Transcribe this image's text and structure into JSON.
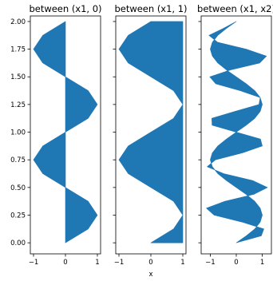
{
  "chart_data": [
    {
      "type": "area",
      "orientation": "horizontal-fill",
      "title": "between (x1, 0)",
      "xlabel": "",
      "ylabel": "",
      "xlim": [
        -1.1,
        1.1
      ],
      "ylim": [
        -0.1,
        2.05
      ],
      "xticks": [
        -1,
        0,
        1
      ],
      "xtick_labels": [
        "−1",
        "0",
        "1"
      ],
      "yticks": [
        0.0,
        0.25,
        0.5,
        0.75,
        1.0,
        1.25,
        1.5,
        1.75,
        2.0
      ],
      "ytick_labels": [
        "0.00",
        "0.25",
        "0.50",
        "0.75",
        "1.00",
        "1.25",
        "1.50",
        "1.75",
        "2.00"
      ],
      "color": "#1f77b4",
      "series": [
        {
          "y": [
            0,
            0.125,
            0.25,
            0.375,
            0.5,
            0.625,
            0.75,
            0.875,
            1.0,
            1.125,
            1.25,
            1.375,
            1.5,
            1.625,
            1.75,
            1.875,
            2.0
          ],
          "x1": [
            0,
            0.71,
            1,
            0.71,
            0,
            -0.71,
            -1,
            -0.71,
            0,
            0.71,
            1,
            0.71,
            0,
            -0.71,
            -1,
            -0.71,
            0
          ],
          "x2": [
            0,
            0,
            0,
            0,
            0,
            0,
            0,
            0,
            0,
            0,
            0,
            0,
            0,
            0,
            0,
            0,
            0
          ]
        }
      ]
    },
    {
      "type": "area",
      "orientation": "horizontal-fill",
      "title": "between (x1, 1)",
      "xlabel": "x",
      "ylabel": "",
      "xlim": [
        -1.1,
        1.1
      ],
      "ylim": [
        -0.1,
        2.05
      ],
      "xticks": [
        -1,
        0,
        1
      ],
      "xtick_labels": [
        "−1",
        "0",
        "1"
      ],
      "yticks": [
        0.0,
        0.25,
        0.5,
        0.75,
        1.0,
        1.25,
        1.5,
        1.75,
        2.0
      ],
      "ytick_labels": [],
      "color": "#1f77b4",
      "series": [
        {
          "y": [
            0,
            0.125,
            0.25,
            0.375,
            0.5,
            0.625,
            0.75,
            0.875,
            1.0,
            1.125,
            1.25,
            1.375,
            1.5,
            1.625,
            1.75,
            1.875,
            2.0
          ],
          "x1": [
            0,
            0.71,
            1,
            0.71,
            0,
            -0.71,
            -1,
            -0.71,
            0,
            0.71,
            1,
            0.71,
            0,
            -0.71,
            -1,
            -0.71,
            0
          ],
          "x2": [
            1,
            1,
            1,
            1,
            1,
            1,
            1,
            1,
            1,
            1,
            1,
            1,
            1,
            1,
            1,
            1,
            1
          ]
        }
      ]
    },
    {
      "type": "area",
      "orientation": "horizontal-fill",
      "title": "between (x1, x2)",
      "xlabel": "",
      "ylabel": "",
      "xlim": [
        -1.35,
        1.35
      ],
      "ylim": [
        -0.1,
        2.05
      ],
      "xticks": [
        -1,
        0,
        1
      ],
      "xtick_labels": [
        "−1",
        "0",
        "1"
      ],
      "yticks": [
        0.0,
        0.25,
        0.5,
        0.75,
        1.0,
        1.25,
        1.5,
        1.75,
        2.0
      ],
      "ytick_labels": [],
      "color": "#1f77b4",
      "series": [
        {
          "y": [
            0,
            0.0625,
            0.125,
            0.1875,
            0.25,
            0.3125,
            0.375,
            0.4375,
            0.5,
            0.5625,
            0.625,
            0.6875,
            0.75,
            0.8125,
            0.875,
            0.9375,
            1.0,
            1.0625,
            1.125,
            1.1875,
            1.25,
            1.3125,
            1.375,
            1.4375,
            1.5,
            1.5625,
            1.625,
            1.6875,
            1.75,
            1.8125,
            1.875,
            1.9375,
            2.0
          ],
          "x1": [
            0,
            0.38,
            0.71,
            0.92,
            1,
            0.92,
            0.71,
            0.38,
            0,
            -0.38,
            -0.71,
            -0.92,
            -1,
            -0.92,
            -0.71,
            -0.38,
            0,
            0.38,
            0.71,
            0.92,
            1,
            0.92,
            0.71,
            0.38,
            0,
            -0.38,
            -0.71,
            -0.92,
            -1,
            -0.92,
            -0.71,
            -0.38,
            0
          ],
          "x2": [
            0,
            0.96,
            1.06,
            0.22,
            -0.85,
            -1.15,
            -0.44,
            0.67,
            1.2,
            0.63,
            -0.48,
            -1.12,
            -0.8,
            0.24,
            1.0,
            0.93,
            0,
            -0.93,
            -0.94,
            -0.05,
            0.87,
            0.92,
            0.15,
            -0.79,
            -1.02,
            -0.22,
            0.9,
            1.16,
            0.38,
            -0.72,
            -1.05,
            -0.5,
            0.0
          ]
        }
      ]
    }
  ]
}
